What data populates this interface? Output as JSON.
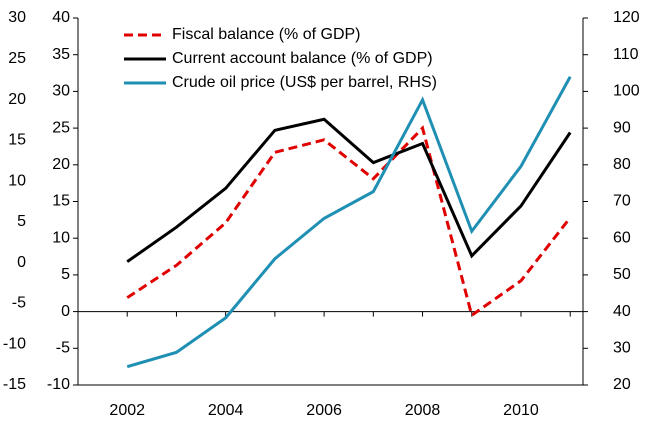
{
  "chart_data": {
    "type": "line",
    "x": [
      2002,
      2003,
      2004,
      2005,
      2006,
      2007,
      2008,
      2009,
      2010,
      2011
    ],
    "series": [
      {
        "name": "Fiscal balance (% of GDP)",
        "color": "#e00000",
        "dash": true,
        "values": [
          1.9,
          6.3,
          12.1,
          21.7,
          23.4,
          18.1,
          25.0,
          -0.5,
          4.2,
          12.8
        ]
      },
      {
        "name": "Current account balance (% of GDP)",
        "color": "#000000",
        "values": [
          6.8,
          11.5,
          16.8,
          24.7,
          26.2,
          20.3,
          22.9,
          7.6,
          14.4,
          24.4
        ]
      },
      {
        "name": "Crude oil price (US$ per barrel, RHS)",
        "color": "#1f8fb4",
        "axis": "y2",
        "values": [
          25.0,
          28.9,
          38.3,
          54.4,
          65.4,
          72.7,
          97.7,
          61.9,
          79.6,
          104.0
        ]
      }
    ],
    "xlim": [
      2001,
      2011.26
    ],
    "xticks": [
      2002,
      2004,
      2006,
      2008,
      2010
    ],
    "ylim": [
      -10,
      40
    ],
    "yticks": [
      -10,
      -5,
      0,
      5,
      10,
      15,
      20,
      25,
      30,
      35,
      40
    ],
    "y2lim": [
      20,
      120
    ],
    "y2ticks": [
      20,
      30,
      40,
      50,
      60,
      70,
      80,
      90,
      100,
      110,
      120
    ],
    "y3lim": [
      -15,
      30
    ],
    "y3ticks": [
      -15,
      -10,
      -5,
      0,
      5,
      10,
      15,
      20,
      25,
      30
    ],
    "legend": "upper left"
  }
}
